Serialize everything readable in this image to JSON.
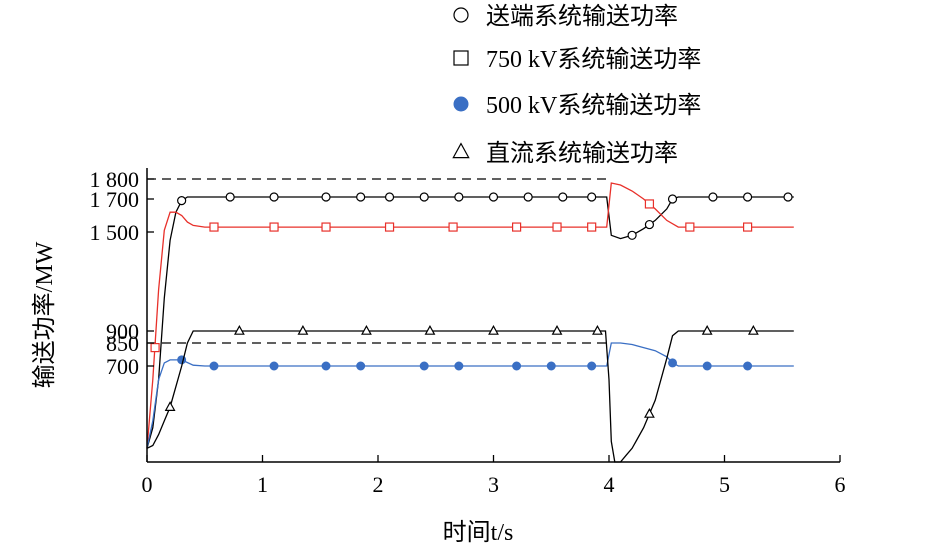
{
  "chart_data": {
    "type": "line",
    "xlabel": "时间t/s",
    "ylabel": "输送功率/MW",
    "xlim": [
      0,
      6
    ],
    "x_ticks": [
      "0",
      "1",
      "2",
      "3",
      "4",
      "5",
      "6"
    ],
    "y_ticks": [
      {
        "value": 700,
        "label": "700"
      },
      {
        "value": 850,
        "label": "850"
      },
      {
        "value": 900,
        "label": "900"
      },
      {
        "value": 1500,
        "label": "1 500"
      },
      {
        "value": 1700,
        "label": "1 700"
      },
      {
        "value": 1800,
        "label": "1 800"
      }
    ],
    "reference_lines": [
      1800,
      850
    ],
    "grid": false,
    "legend_position": "top-right",
    "series": [
      {
        "name": "送端系统输送功率",
        "marker": "circle-open",
        "color": "#000000",
        "x": [
          0,
          0.05,
          0.1,
          0.15,
          0.2,
          0.25,
          0.3,
          0.35,
          0.4,
          0.5,
          1.0,
          2.0,
          3.0,
          3.95,
          3.98,
          4.02,
          4.1,
          4.2,
          4.3,
          4.4,
          4.5,
          4.55,
          4.6,
          5.0,
          5.6
        ],
        "y": [
          100,
          250,
          600,
          1100,
          1450,
          1620,
          1690,
          1710,
          1710,
          1710,
          1710,
          1710,
          1710,
          1710,
          1710,
          1480,
          1460,
          1480,
          1520,
          1570,
          1640,
          1700,
          1710,
          1710,
          1710
        ]
      },
      {
        "name": "750 kV系统输送功率",
        "marker": "square-open",
        "color": "#e8302a",
        "x": [
          0,
          0.05,
          0.1,
          0.15,
          0.2,
          0.25,
          0.3,
          0.35,
          0.4,
          0.5,
          1.0,
          2.0,
          3.0,
          3.95,
          3.98,
          4.02,
          4.1,
          4.2,
          4.3,
          4.4,
          4.5,
          4.6,
          5.0,
          5.6
        ],
        "y": [
          100,
          600,
          1150,
          1510,
          1620,
          1620,
          1600,
          1560,
          1540,
          1530,
          1530,
          1530,
          1530,
          1530,
          1530,
          1780,
          1770,
          1740,
          1700,
          1640,
          1570,
          1530,
          1530,
          1530
        ]
      },
      {
        "name": "500 kV系统输送功率",
        "marker": "circle-filled",
        "color": "#3a6fc4",
        "x": [
          0,
          0.05,
          0.1,
          0.15,
          0.2,
          0.3,
          0.4,
          0.5,
          1.0,
          2.0,
          3.0,
          3.95,
          3.98,
          4.02,
          4.1,
          4.2,
          4.3,
          4.4,
          4.5,
          4.55,
          4.6,
          5.0,
          5.6
        ],
        "y": [
          100,
          300,
          600,
          720,
          740,
          740,
          705,
          700,
          700,
          700,
          700,
          700,
          700,
          850,
          850,
          840,
          820,
          800,
          760,
          720,
          700,
          700,
          700
        ]
      },
      {
        "name": "直流系统输送功率",
        "marker": "triangle-open",
        "color": "#000000",
        "x": [
          0,
          0.05,
          0.1,
          0.15,
          0.2,
          0.25,
          0.3,
          0.35,
          0.4,
          0.5,
          1.0,
          2.0,
          3.0,
          3.95,
          3.97,
          4.0,
          4.02,
          4.05,
          4.1,
          4.15,
          4.2,
          4.3,
          4.4,
          4.5,
          4.55,
          4.6,
          5.0,
          5.6
        ],
        "y": [
          100,
          120,
          200,
          300,
          400,
          550,
          700,
          850,
          900,
          900,
          900,
          900,
          900,
          900,
          900,
          600,
          150,
          0,
          0,
          50,
          100,
          250,
          450,
          750,
          880,
          900,
          900,
          900
        ]
      }
    ]
  }
}
